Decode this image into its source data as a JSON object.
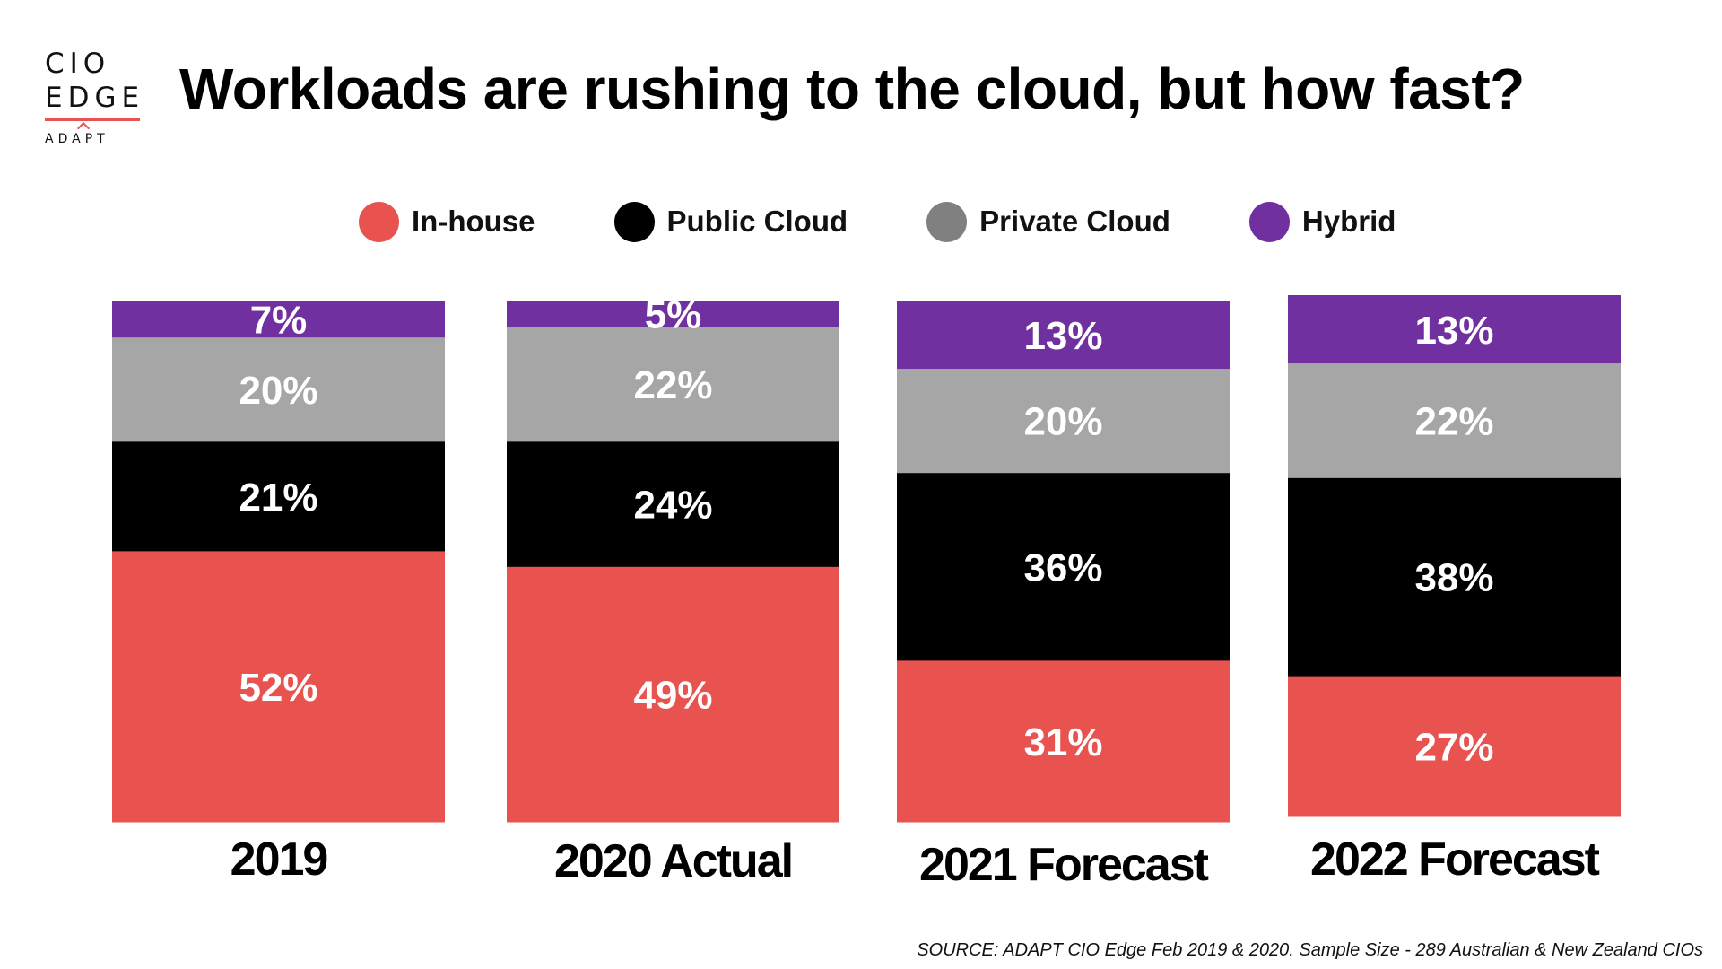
{
  "logo": {
    "line1": "CIO",
    "line2": "EDGE",
    "line3": "ADAPT"
  },
  "chart_data": {
    "type": "bar",
    "stacked": true,
    "title": "Workloads are rushing to the cloud, but how fast?",
    "categories": [
      "2019",
      "2020 Actual",
      "2021 Forecast",
      "2022 Forecast"
    ],
    "series": [
      {
        "name": "In-house",
        "color": "#e8524f",
        "values": [
          52,
          49,
          31,
          27
        ],
        "labels": [
          "52%",
          "49%",
          "31%",
          "27%"
        ]
      },
      {
        "name": "Public Cloud",
        "color": "#000000",
        "values": [
          21,
          24,
          36,
          38
        ],
        "labels": [
          "21%",
          "24%",
          "36%",
          "38%"
        ]
      },
      {
        "name": "Private Cloud",
        "color": "#a6a6a6",
        "values": [
          20,
          22,
          20,
          22
        ],
        "labels": [
          "20%",
          "22%",
          "20%",
          "22%"
        ]
      },
      {
        "name": "Hybrid",
        "color": "#7030a0",
        "values": [
          7,
          5,
          13,
          13
        ],
        "labels": [
          "7%",
          "5%",
          "13%",
          "13%"
        ]
      }
    ],
    "legend_position": "top",
    "legend_swatch_colors": [
      "#e8524f",
      "#000000",
      "#808080",
      "#7030a0"
    ],
    "grid": false,
    "source": "SOURCE: ADAPT CIO Edge Feb 2019 & 2020. Sample Size - 289 Australian & New Zealand CIOs"
  }
}
